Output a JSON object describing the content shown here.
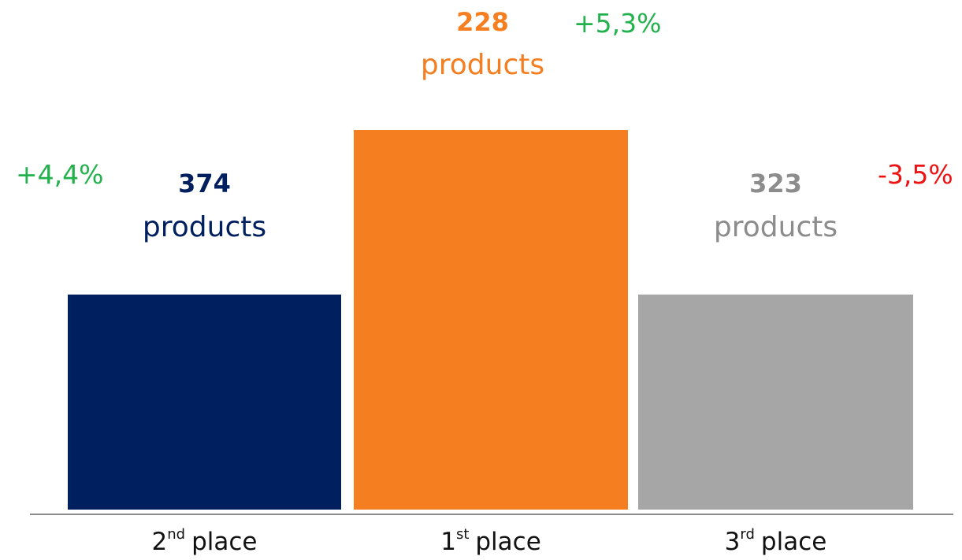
{
  "podium": [
    {
      "place": "2",
      "suffix": "nd",
      "label": "place",
      "count": "374",
      "unit": "products",
      "change": "+4,4%"
    },
    {
      "place": "1",
      "suffix": "st",
      "label": "place",
      "count": "228",
      "unit": "products",
      "change": "+5,3%"
    },
    {
      "place": "3",
      "suffix": "rd",
      "label": "place",
      "count": "323",
      "unit": "products",
      "change": "-3,5%"
    }
  ]
}
